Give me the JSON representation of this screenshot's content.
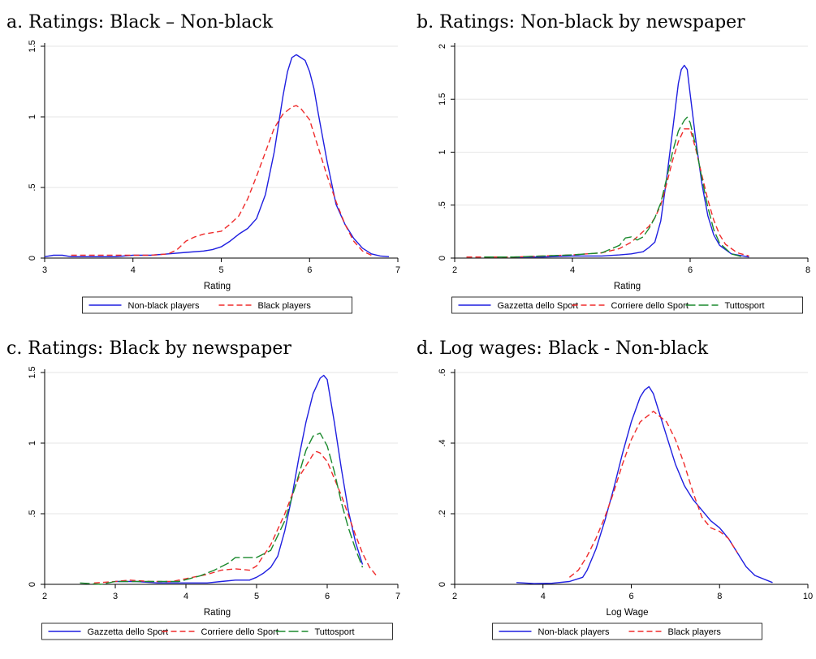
{
  "colors": {
    "blue": "#1f1fe0",
    "red": "#ef2b2b",
    "green": "#1b8a2e",
    "grid": "#e6e6e6"
  },
  "chart_data": [
    {
      "type": "line",
      "title": "a. Ratings: Black – Non-black",
      "xlabel": "Rating",
      "ylabel": "",
      "xlim": [
        3,
        7
      ],
      "ylim": [
        0,
        1.5
      ],
      "xticks": [
        3,
        4,
        5,
        6,
        7
      ],
      "xtick_labels": [
        "3",
        "4",
        "5",
        "6",
        "7"
      ],
      "yticks": [
        0,
        0.5,
        1,
        1.5
      ],
      "ytick_labels": [
        "0",
        ".5",
        "1",
        "1.5"
      ],
      "legend": "bottom",
      "series": [
        {
          "name": "Non-black players",
          "color": "blue",
          "dash": "solid",
          "x": [
            3.0,
            3.1,
            3.2,
            3.3,
            3.5,
            3.8,
            4.0,
            4.2,
            4.4,
            4.6,
            4.8,
            4.9,
            5.0,
            5.1,
            5.2,
            5.3,
            5.4,
            5.5,
            5.6,
            5.7,
            5.75,
            5.8,
            5.85,
            5.9,
            5.95,
            6.0,
            6.05,
            6.1,
            6.2,
            6.3,
            6.4,
            6.5,
            6.6,
            6.7,
            6.8,
            6.9
          ],
          "y": [
            0.01,
            0.02,
            0.02,
            0.01,
            0.01,
            0.01,
            0.02,
            0.02,
            0.03,
            0.04,
            0.05,
            0.06,
            0.08,
            0.12,
            0.17,
            0.21,
            0.28,
            0.45,
            0.75,
            1.15,
            1.32,
            1.42,
            1.44,
            1.42,
            1.4,
            1.32,
            1.2,
            1.02,
            0.68,
            0.38,
            0.24,
            0.14,
            0.07,
            0.03,
            0.015,
            0.01
          ]
        },
        {
          "name": "Black players",
          "color": "red",
          "dash": "dashed",
          "x": [
            3.3,
            3.5,
            3.8,
            4.0,
            4.2,
            4.4,
            4.5,
            4.6,
            4.7,
            4.8,
            4.9,
            5.0,
            5.1,
            5.2,
            5.3,
            5.4,
            5.5,
            5.6,
            5.7,
            5.8,
            5.85,
            5.9,
            6.0,
            6.1,
            6.2,
            6.3,
            6.4,
            6.5,
            6.6,
            6.7
          ],
          "y": [
            0.02,
            0.02,
            0.02,
            0.02,
            0.02,
            0.03,
            0.06,
            0.12,
            0.15,
            0.17,
            0.18,
            0.19,
            0.24,
            0.3,
            0.42,
            0.58,
            0.75,
            0.92,
            1.02,
            1.07,
            1.08,
            1.06,
            0.98,
            0.78,
            0.58,
            0.4,
            0.24,
            0.12,
            0.05,
            0.02
          ]
        }
      ]
    },
    {
      "type": "line",
      "title": "b. Ratings: Non-black by newspaper",
      "xlabel": "Rating",
      "ylabel": "",
      "xlim": [
        2,
        8
      ],
      "ylim": [
        0,
        2
      ],
      "xticks": [
        2,
        4,
        6,
        8
      ],
      "xtick_labels": [
        "2",
        "4",
        "6",
        "8"
      ],
      "yticks": [
        0,
        0.5,
        1,
        1.5,
        2
      ],
      "ytick_labels": [
        "0",
        ".5",
        "1",
        "1.5",
        "2"
      ],
      "legend": "bottom",
      "series": [
        {
          "name": "Gazzetta dello Sport",
          "color": "blue",
          "dash": "solid",
          "x": [
            3.0,
            3.5,
            4.0,
            4.5,
            4.8,
            5.0,
            5.2,
            5.3,
            5.4,
            5.5,
            5.6,
            5.7,
            5.8,
            5.85,
            5.9,
            5.95,
            6.0,
            6.1,
            6.2,
            6.3,
            6.4,
            6.5,
            6.7,
            7.0
          ],
          "y": [
            0.01,
            0.01,
            0.02,
            0.02,
            0.03,
            0.04,
            0.06,
            0.1,
            0.15,
            0.35,
            0.75,
            1.2,
            1.65,
            1.78,
            1.82,
            1.78,
            1.55,
            1.1,
            0.7,
            0.4,
            0.22,
            0.12,
            0.04,
            0.01
          ]
        },
        {
          "name": "Corriere dello Sport",
          "color": "red",
          "dash": "dashed",
          "x": [
            2.2,
            2.5,
            3.0,
            3.5,
            4.0,
            4.5,
            4.8,
            5.0,
            5.1,
            5.2,
            5.3,
            5.4,
            5.5,
            5.6,
            5.7,
            5.8,
            5.9,
            6.0,
            6.1,
            6.2,
            6.3,
            6.4,
            6.5,
            6.6,
            6.8,
            7.0
          ],
          "y": [
            0.01,
            0.01,
            0.01,
            0.02,
            0.03,
            0.05,
            0.09,
            0.15,
            0.2,
            0.25,
            0.3,
            0.38,
            0.5,
            0.7,
            0.92,
            1.1,
            1.22,
            1.22,
            1.02,
            0.78,
            0.55,
            0.36,
            0.22,
            0.13,
            0.05,
            0.02
          ]
        },
        {
          "name": "Tuttosport",
          "color": "green",
          "dash": "longdash",
          "x": [
            2.5,
            3.0,
            3.5,
            4.0,
            4.5,
            4.8,
            4.9,
            5.0,
            5.1,
            5.2,
            5.3,
            5.4,
            5.5,
            5.6,
            5.7,
            5.8,
            5.9,
            5.95,
            6.0,
            6.1,
            6.2,
            6.3,
            6.4,
            6.5,
            6.7,
            6.9
          ],
          "y": [
            0.01,
            0.01,
            0.02,
            0.03,
            0.05,
            0.12,
            0.19,
            0.2,
            0.17,
            0.2,
            0.28,
            0.38,
            0.52,
            0.75,
            1.0,
            1.2,
            1.3,
            1.33,
            1.28,
            1.05,
            0.75,
            0.48,
            0.27,
            0.14,
            0.04,
            0.01
          ]
        }
      ]
    },
    {
      "type": "line",
      "title": "c. Ratings: Black by newspaper",
      "xlabel": "Rating",
      "ylabel": "",
      "xlim": [
        2,
        7
      ],
      "ylim": [
        0,
        1.5
      ],
      "xticks": [
        2,
        3,
        4,
        5,
        6,
        7
      ],
      "xtick_labels": [
        "2",
        "3",
        "4",
        "5",
        "6",
        "7"
      ],
      "yticks": [
        0,
        0.5,
        1,
        1.5
      ],
      "ytick_labels": [
        "0",
        ".5",
        "1",
        "1.5"
      ],
      "legend": "bottom",
      "series": [
        {
          "name": "Gazzetta dello Sport",
          "color": "blue",
          "dash": "solid",
          "x": [
            3.0,
            3.3,
            3.6,
            4.0,
            4.3,
            4.5,
            4.7,
            4.9,
            5.0,
            5.1,
            5.2,
            5.3,
            5.4,
            5.5,
            5.6,
            5.7,
            5.8,
            5.9,
            5.95,
            6.0,
            6.1,
            6.2,
            6.3,
            6.4,
            6.5
          ],
          "y": [
            0.02,
            0.02,
            0.01,
            0.01,
            0.01,
            0.02,
            0.03,
            0.03,
            0.05,
            0.08,
            0.12,
            0.2,
            0.38,
            0.62,
            0.9,
            1.15,
            1.35,
            1.46,
            1.48,
            1.45,
            1.15,
            0.82,
            0.52,
            0.3,
            0.14
          ]
        },
        {
          "name": "Corriere dello Sport",
          "color": "red",
          "dash": "dashed",
          "x": [
            2.7,
            3.0,
            3.2,
            3.5,
            3.8,
            4.0,
            4.3,
            4.5,
            4.7,
            4.9,
            5.0,
            5.2,
            5.4,
            5.6,
            5.8,
            5.85,
            5.9,
            6.0,
            6.2,
            6.4,
            6.5,
            6.6,
            6.7
          ],
          "y": [
            0.01,
            0.02,
            0.03,
            0.02,
            0.02,
            0.04,
            0.07,
            0.1,
            0.11,
            0.1,
            0.13,
            0.28,
            0.5,
            0.76,
            0.92,
            0.94,
            0.93,
            0.87,
            0.63,
            0.35,
            0.22,
            0.12,
            0.06
          ]
        },
        {
          "name": "Tuttosport",
          "color": "green",
          "dash": "longdash",
          "x": [
            2.5,
            2.8,
            3.0,
            3.3,
            3.6,
            3.9,
            4.2,
            4.4,
            4.6,
            4.7,
            4.8,
            5.0,
            5.2,
            5.4,
            5.6,
            5.7,
            5.8,
            5.9,
            6.0,
            6.1,
            6.2,
            6.3,
            6.4,
            6.5
          ],
          "y": [
            0.01,
            0.0,
            0.02,
            0.02,
            0.02,
            0.02,
            0.06,
            0.1,
            0.15,
            0.19,
            0.19,
            0.19,
            0.24,
            0.45,
            0.78,
            0.95,
            1.05,
            1.07,
            0.98,
            0.8,
            0.58,
            0.4,
            0.25,
            0.12
          ]
        }
      ]
    },
    {
      "type": "line",
      "title": "d. Log wages: Black - Non-black",
      "xlabel": "Log Wage",
      "ylabel": "",
      "xlim": [
        2,
        10
      ],
      "ylim": [
        0,
        0.6
      ],
      "xticks": [
        2,
        4,
        6,
        8,
        10
      ],
      "xtick_labels": [
        "2",
        "4",
        "6",
        "8",
        "10"
      ],
      "yticks": [
        0,
        0.2,
        0.4,
        0.6
      ],
      "ytick_labels": [
        "0",
        ".2",
        ".4",
        ".6"
      ],
      "legend": "bottom",
      "series": [
        {
          "name": "Non-black players",
          "color": "blue",
          "dash": "solid",
          "x": [
            3.4,
            3.8,
            4.2,
            4.6,
            4.9,
            5.0,
            5.2,
            5.4,
            5.6,
            5.8,
            6.0,
            6.2,
            6.3,
            6.4,
            6.5,
            6.6,
            6.8,
            7.0,
            7.2,
            7.4,
            7.6,
            7.8,
            8.0,
            8.2,
            8.4,
            8.6,
            8.8,
            9.2
          ],
          "y": [
            0.005,
            0.002,
            0.003,
            0.008,
            0.02,
            0.04,
            0.1,
            0.18,
            0.27,
            0.37,
            0.46,
            0.53,
            0.55,
            0.56,
            0.54,
            0.5,
            0.42,
            0.34,
            0.28,
            0.24,
            0.21,
            0.18,
            0.16,
            0.13,
            0.09,
            0.05,
            0.025,
            0.005
          ]
        },
        {
          "name": "Black players",
          "color": "red",
          "dash": "dashed",
          "x": [
            4.6,
            4.8,
            5.0,
            5.2,
            5.4,
            5.6,
            5.8,
            6.0,
            6.2,
            6.4,
            6.5,
            6.6,
            6.8,
            7.0,
            7.2,
            7.4,
            7.6,
            7.8,
            8.0,
            8.2,
            8.4
          ],
          "y": [
            0.02,
            0.04,
            0.08,
            0.13,
            0.19,
            0.26,
            0.34,
            0.41,
            0.46,
            0.48,
            0.49,
            0.48,
            0.46,
            0.41,
            0.34,
            0.26,
            0.19,
            0.16,
            0.15,
            0.13,
            0.09
          ]
        }
      ]
    }
  ]
}
